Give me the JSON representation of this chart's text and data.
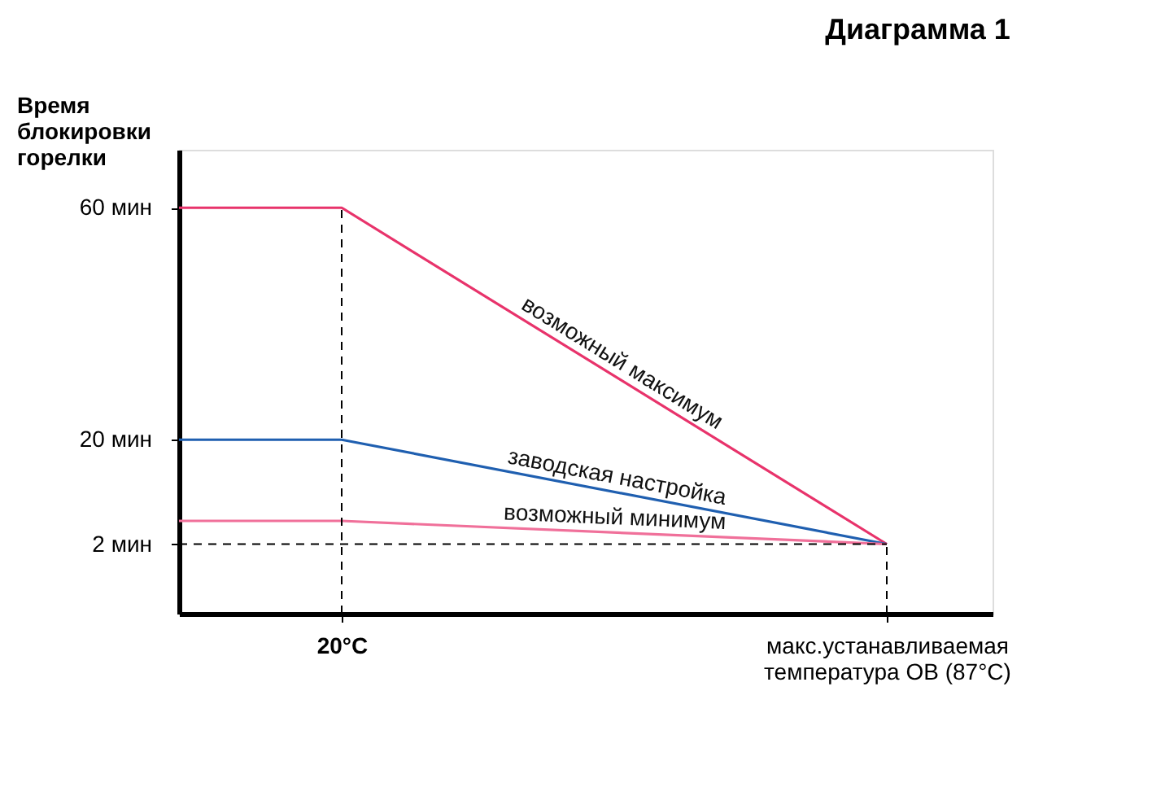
{
  "chart_data": {
    "type": "line",
    "title": "Диаграмма 1",
    "ylabel": "Время блокировки горелки",
    "x": [
      0,
      20,
      87
    ],
    "xlim": [
      0,
      100
    ],
    "xticks": [
      {
        "value": 20,
        "label": "20°C"
      },
      {
        "value": 87,
        "label": "макс.устанавливаемая температура ОВ (87°C)"
      }
    ],
    "ylim": [
      -10,
      70
    ],
    "yticks": [
      {
        "value": 2,
        "label": "2 мин"
      },
      {
        "value": 20,
        "label": "20 мин"
      },
      {
        "value": 60,
        "label": "60 мин"
      }
    ],
    "series": [
      {
        "name": "возможный максимум",
        "color": "#e8336b",
        "values": [
          60,
          60,
          2
        ]
      },
      {
        "name": "заводская настройка",
        "color": "#1f5fb0",
        "values": [
          20,
          20,
          2
        ]
      },
      {
        "name": "возможный минимум",
        "color": "#f0709a",
        "values": [
          6,
          6,
          2
        ]
      }
    ],
    "ref_lines": [
      {
        "axis": "x",
        "value": 20,
        "line_style": "dashed",
        "color": "#000000"
      },
      {
        "axis": "x",
        "value": 87,
        "line_style": "dashed",
        "color": "#000000"
      },
      {
        "axis": "y",
        "value": 2,
        "line_style": "dashed",
        "color": "#000000"
      }
    ],
    "grid": false,
    "marker": "none",
    "line_style": "solid"
  }
}
